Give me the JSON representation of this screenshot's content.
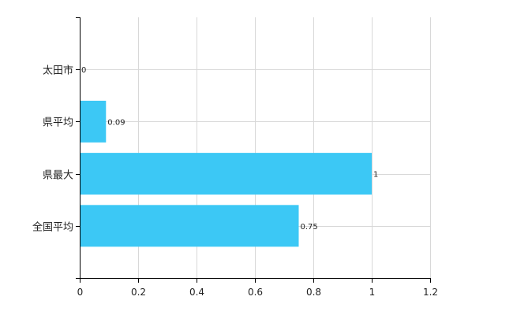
{
  "chart_data": {
    "type": "bar",
    "orientation": "horizontal",
    "categories": [
      "太田市",
      "県平均",
      "県最大",
      "全国平均"
    ],
    "values": [
      0,
      0.09,
      1,
      0.75
    ],
    "data_labels": [
      "0",
      "0.09",
      "1",
      "0.75"
    ],
    "xlim": [
      0,
      1.2
    ],
    "x_ticks": [
      0,
      0.2,
      0.4,
      0.6,
      0.8,
      1,
      1.2
    ],
    "x_tick_labels": [
      "0",
      "0.2",
      "0.4",
      "0.6",
      "0.8",
      "1",
      "1.2"
    ],
    "grid": true,
    "bar_color": "#3cc8f5",
    "grid_color": "#d8d8d8",
    "axis_color": "#000000"
  }
}
